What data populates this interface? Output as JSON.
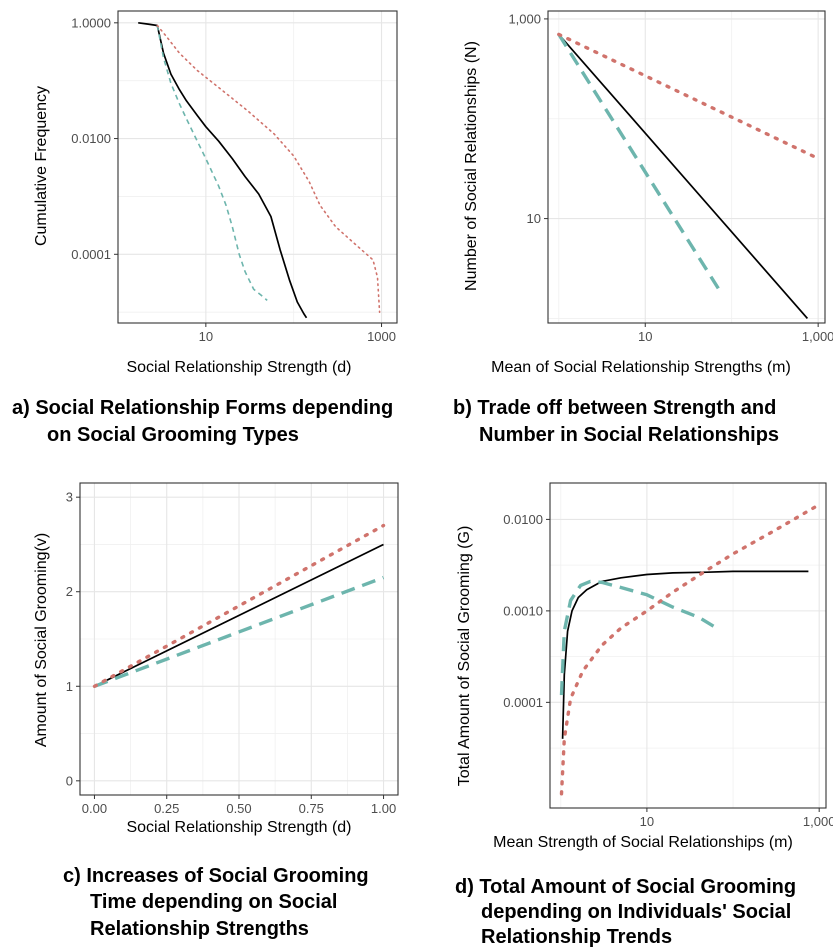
{
  "colors": {
    "solid": "#000000",
    "dashed": "#6db5ad",
    "dotted": "#d0736c",
    "grid": "#e6e6e6",
    "frame": "#333333",
    "tick_text": "#4d4d4d"
  },
  "chart_data": [
    {
      "id": "a",
      "type": "line",
      "caption_line1": "a)   Social Relationship Forms depending",
      "caption_line2": "on  Social Grooming Types",
      "xlabel": "Social Relationship Strength (d)",
      "ylabel": "Cumulative Frequency",
      "x_scale": "log",
      "y_scale": "log",
      "xlim": [
        1,
        1500
      ],
      "ylim": [
        6.5e-06,
        1.6
      ],
      "x_ticks": [
        {
          "value": 10,
          "label": "10"
        },
        {
          "value": 1000,
          "label": "1000"
        }
      ],
      "y_ticks": [
        {
          "value": 1,
          "label": "1.0000"
        },
        {
          "value": 0.01,
          "label": "0.0100"
        },
        {
          "value": 0.0001,
          "label": "0.0001"
        }
      ],
      "series": [
        {
          "style": "solid",
          "points": [
            [
              1.7,
              1
            ],
            [
              2.2,
              0.95
            ],
            [
              2.8,
              0.9
            ],
            [
              3.3,
              0.3
            ],
            [
              4,
              0.13
            ],
            [
              5,
              0.07
            ],
            [
              6,
              0.045
            ],
            [
              8,
              0.025
            ],
            [
              10,
              0.016
            ],
            [
              14,
              0.009
            ],
            [
              20,
              0.0045
            ],
            [
              28,
              0.0022
            ],
            [
              40,
              0.0011
            ],
            [
              55,
              0.00045
            ],
            [
              70,
              0.00012
            ],
            [
              90,
              3.5e-05
            ],
            [
              110,
              1.5e-05
            ],
            [
              130,
              9.5e-06
            ],
            [
              140,
              8e-06
            ]
          ]
        },
        {
          "style": "dashed",
          "points": [
            [
              2.8,
              0.9
            ],
            [
              3.3,
              0.25
            ],
            [
              4,
              0.09
            ],
            [
              5,
              0.04
            ],
            [
              6,
              0.022
            ],
            [
              8,
              0.009
            ],
            [
              10,
              0.0045
            ],
            [
              14,
              0.0015
            ],
            [
              17,
              0.0007
            ],
            [
              20,
              0.0003
            ],
            [
              24,
              0.0001
            ],
            [
              28,
              5e-05
            ],
            [
              35,
              2.5e-05
            ],
            [
              42,
              2e-05
            ],
            [
              50,
              1.6e-05
            ]
          ]
        },
        {
          "style": "dotted",
          "points": [
            [
              2.8,
              0.9
            ],
            [
              3.5,
              0.6
            ],
            [
              5,
              0.3
            ],
            [
              8,
              0.15
            ],
            [
              15,
              0.07
            ],
            [
              30,
              0.03
            ],
            [
              60,
              0.012
            ],
            [
              100,
              0.005
            ],
            [
              150,
              0.0018
            ],
            [
              200,
              0.0007
            ],
            [
              300,
              0.0003
            ],
            [
              500,
              0.00015
            ],
            [
              800,
              8e-05
            ],
            [
              900,
              4e-05
            ],
            [
              950,
              1e-05
            ]
          ]
        }
      ]
    },
    {
      "id": "b",
      "type": "line",
      "caption_line1": "b) Trade off between Strength and",
      "caption_line2": "Number in Social Relationships",
      "xlabel": "Mean of Social Relationship Strengths (m)",
      "ylabel": "Number of Social Relationships (N)",
      "x_scale": "log",
      "y_scale": "log",
      "xlim": [
        0.75,
        1200
      ],
      "ylim": [
        0.9,
        1200
      ],
      "x_ticks": [
        {
          "value": 10,
          "label": "10"
        },
        {
          "value": 1000,
          "label": "1,000"
        }
      ],
      "y_ticks": [
        {
          "value": 1000,
          "label": "1,000"
        },
        {
          "value": 10,
          "label": "10"
        }
      ],
      "series": [
        {
          "style": "solid",
          "points": [
            [
              1,
              700
            ],
            [
              750,
              1
            ]
          ]
        },
        {
          "style": "dashed",
          "points": [
            [
              1,
              700
            ],
            [
              70,
              2
            ]
          ]
        },
        {
          "style": "dotted",
          "points": [
            [
              1,
              700
            ],
            [
              1000,
              40
            ]
          ]
        }
      ]
    },
    {
      "id": "c",
      "type": "line",
      "caption_line1": "c) Increases of Social Grooming",
      "caption_line2": "Time depending on Social",
      "caption_line3": "Relationship Strengths",
      "xlabel": "Social Relationship Strength (d)",
      "ylabel": "Amount of Social Grooming(v)",
      "x_scale": "linear",
      "y_scale": "linear",
      "xlim": [
        -0.05,
        1.05
      ],
      "ylim": [
        -0.15,
        3.15
      ],
      "x_ticks": [
        {
          "value": 0,
          "label": "0.00"
        },
        {
          "value": 0.25,
          "label": "0.25"
        },
        {
          "value": 0.5,
          "label": "0.50"
        },
        {
          "value": 0.75,
          "label": "0.75"
        },
        {
          "value": 1,
          "label": "1.00"
        }
      ],
      "y_ticks": [
        {
          "value": 0,
          "label": "0"
        },
        {
          "value": 1,
          "label": "1"
        },
        {
          "value": 2,
          "label": "2"
        },
        {
          "value": 3,
          "label": "3"
        }
      ],
      "series": [
        {
          "style": "solid",
          "points": [
            [
              0,
              1
            ],
            [
              1,
              2.5
            ]
          ]
        },
        {
          "style": "dashed",
          "points": [
            [
              0,
              1
            ],
            [
              1,
              2.15
            ]
          ]
        },
        {
          "style": "dotted",
          "points": [
            [
              0,
              1
            ],
            [
              1,
              2.7
            ]
          ]
        }
      ]
    },
    {
      "id": "d",
      "type": "line",
      "caption_line1": "d) Total Amount of Social Grooming",
      "caption_line2": "depending on Individuals' Social",
      "caption_line3": "Relationship Trends",
      "xlabel": "Mean Strength of Social Relationships (m)",
      "ylabel": "Total Amount of Social Grooming (G)",
      "x_scale": "log",
      "y_scale": "log",
      "xlim": [
        0.75,
        1200
      ],
      "ylim": [
        7e-06,
        0.025
      ],
      "x_ticks": [
        {
          "value": 10,
          "label": "10"
        },
        {
          "value": 1000,
          "label": "1,000"
        }
      ],
      "y_ticks": [
        {
          "value": 0.01,
          "label": "0.0100"
        },
        {
          "value": 0.001,
          "label": "0.0010"
        },
        {
          "value": 0.0001,
          "label": "0.0001"
        }
      ],
      "series": [
        {
          "style": "solid",
          "points": [
            [
              1.05,
              4e-05
            ],
            [
              1.1,
              0.0002
            ],
            [
              1.2,
              0.0006
            ],
            [
              1.35,
              0.001
            ],
            [
              1.6,
              0.0014
            ],
            [
              2,
              0.0017
            ],
            [
              3,
              0.0021
            ],
            [
              5,
              0.0023
            ],
            [
              10,
              0.0025
            ],
            [
              20,
              0.0026
            ],
            [
              50,
              0.00265
            ],
            [
              100,
              0.0027
            ],
            [
              300,
              0.0027
            ],
            [
              750,
              0.0027
            ]
          ]
        },
        {
          "style": "dashed",
          "points": [
            [
              1.02,
              0.00012
            ],
            [
              1.1,
              0.0006
            ],
            [
              1.3,
              0.0013
            ],
            [
              1.7,
              0.0019
            ],
            [
              2.2,
              0.0021
            ],
            [
              3,
              0.00205
            ],
            [
              5,
              0.0018
            ],
            [
              10,
              0.0015
            ],
            [
              20,
              0.0011
            ],
            [
              40,
              0.00085
            ],
            [
              70,
              0.00062
            ]
          ]
        },
        {
          "style": "dotted",
          "points": [
            [
              1.02,
              1e-05
            ],
            [
              1.1,
              4e-05
            ],
            [
              1.3,
              0.00011
            ],
            [
              1.8,
              0.00022
            ],
            [
              3,
              0.00042
            ],
            [
              5,
              0.00065
            ],
            [
              10,
              0.001
            ],
            [
              20,
              0.0016
            ],
            [
              50,
              0.0028
            ],
            [
              100,
              0.0042
            ],
            [
              300,
              0.0075
            ],
            [
              1000,
              0.0145
            ]
          ]
        }
      ]
    }
  ]
}
